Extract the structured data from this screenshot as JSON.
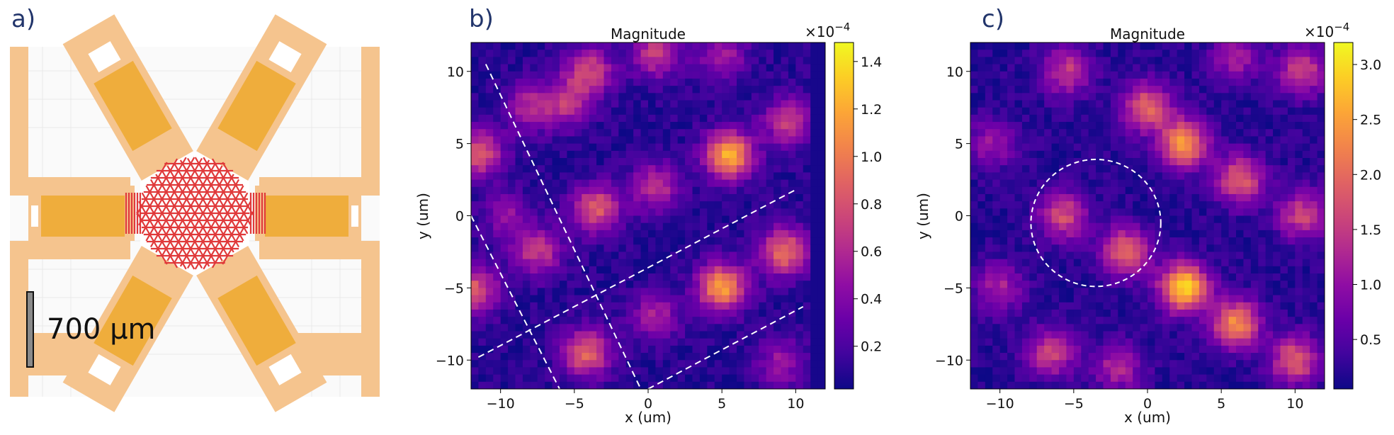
{
  "panels": [
    {
      "id": "a",
      "label": "a)",
      "scale_bar_text": "700 μm"
    }
  ],
  "chart_data": [
    {
      "id": "b",
      "panel_label": "b)",
      "type": "heatmap",
      "title": "Magnitude",
      "xlabel": "x (um)",
      "ylabel": "y (um)",
      "xlim": [
        -12,
        12
      ],
      "ylim": [
        -12,
        12
      ],
      "x_ticks": [
        -10,
        -5,
        0,
        5,
        10
      ],
      "y_ticks": [
        10,
        5,
        0,
        -5,
        -10
      ],
      "colormap": "plasma",
      "colorbar": {
        "multiplier": "×10",
        "exponent": "−4",
        "range": [
          0.02,
          1.48
        ],
        "ticks": [
          0.2,
          0.4,
          0.6,
          0.8,
          1.0,
          1.2,
          1.4
        ],
        "tick_labels": [
          "0.2",
          "0.4",
          "0.6",
          "0.8",
          "1.0",
          "1.2",
          "1.4"
        ]
      },
      "blobs": [
        {
          "x": -11.5,
          "y": 4.3,
          "v": 0.85
        },
        {
          "x": -11.8,
          "y": -5.2,
          "v": 0.85
        },
        {
          "x": -8.0,
          "y": 7.5,
          "v": 0.6
        },
        {
          "x": -5.5,
          "y": 7.8,
          "v": 0.6
        },
        {
          "x": -4.0,
          "y": 10.0,
          "v": 0.75
        },
        {
          "x": 0.5,
          "y": 11.2,
          "v": 0.7
        },
        {
          "x": -3.5,
          "y": 0.5,
          "v": 0.85
        },
        {
          "x": -7.5,
          "y": -2.5,
          "v": 0.7
        },
        {
          "x": 0.5,
          "y": 2.0,
          "v": 0.65
        },
        {
          "x": 5.5,
          "y": 4.2,
          "v": 1.2
        },
        {
          "x": 9.5,
          "y": 6.5,
          "v": 0.7
        },
        {
          "x": 5.0,
          "y": -5.0,
          "v": 1.15
        },
        {
          "x": 9.2,
          "y": -2.5,
          "v": 0.95
        },
        {
          "x": -4.2,
          "y": -9.5,
          "v": 0.9
        },
        {
          "x": 0.5,
          "y": -7.0,
          "v": 0.55
        },
        {
          "x": 9.0,
          "y": -10.2,
          "v": 0.5
        },
        {
          "x": 5.0,
          "y": 11.0,
          "v": 0.55
        },
        {
          "x": -9.5,
          "y": 0.0,
          "v": 0.45
        }
      ],
      "dashed_lines": [
        {
          "from": [
            -11.0,
            10.5
          ],
          "to": [
            -0.5,
            -12.0
          ]
        },
        {
          "from": [
            -12.0,
            0.0
          ],
          "to": [
            -6.0,
            -12.0
          ]
        },
        {
          "from": [
            -11.5,
            -9.8
          ],
          "to": [
            10.0,
            1.8
          ]
        },
        {
          "from": [
            0.0,
            -12.0
          ],
          "to": [
            10.5,
            -6.3
          ]
        }
      ]
    },
    {
      "id": "c",
      "panel_label": "c)",
      "type": "heatmap",
      "title": "Magnitude",
      "xlabel": "x (um)",
      "ylabel": "y (um)",
      "xlim": [
        -12,
        12
      ],
      "ylim": [
        -12,
        12
      ],
      "x_ticks": [
        -10,
        -5,
        0,
        5,
        10
      ],
      "y_ticks": [
        10,
        5,
        0,
        -5,
        -10
      ],
      "colormap": "plasma",
      "colorbar": {
        "multiplier": "×10",
        "exponent": "−4",
        "range": [
          0.05,
          3.2
        ],
        "ticks": [
          0.5,
          1.0,
          1.5,
          2.0,
          2.5,
          3.0
        ],
        "tick_labels": [
          "0.5",
          "1.0",
          "1.5",
          "2.0",
          "2.5",
          "3.0"
        ]
      },
      "blobs": [
        {
          "x": -5.7,
          "y": 0.0,
          "v": 1.7
        },
        {
          "x": -1.5,
          "y": -2.5,
          "v": 2.0
        },
        {
          "x": 2.5,
          "y": -5.0,
          "v": 3.0
        },
        {
          "x": 2.5,
          "y": 5.0,
          "v": 2.4
        },
        {
          "x": 6.3,
          "y": 2.5,
          "v": 1.9
        },
        {
          "x": 6.0,
          "y": -7.5,
          "v": 2.3
        },
        {
          "x": -5.5,
          "y": 10.0,
          "v": 1.5
        },
        {
          "x": 0.0,
          "y": 7.5,
          "v": 2.0
        },
        {
          "x": 10.5,
          "y": 10.0,
          "v": 1.6
        },
        {
          "x": -10.5,
          "y": 5.0,
          "v": 1.1
        },
        {
          "x": -10.0,
          "y": -5.0,
          "v": 1.2
        },
        {
          "x": -6.5,
          "y": -9.5,
          "v": 1.6
        },
        {
          "x": 10.5,
          "y": 0.0,
          "v": 1.6
        },
        {
          "x": 10.0,
          "y": -10.0,
          "v": 1.9
        },
        {
          "x": -2.0,
          "y": -10.5,
          "v": 1.3
        },
        {
          "x": 6.0,
          "y": 11.0,
          "v": 1.2
        }
      ],
      "dashed_circle": {
        "cx": -3.5,
        "cy": -0.5,
        "r": 4.4
      }
    }
  ]
}
